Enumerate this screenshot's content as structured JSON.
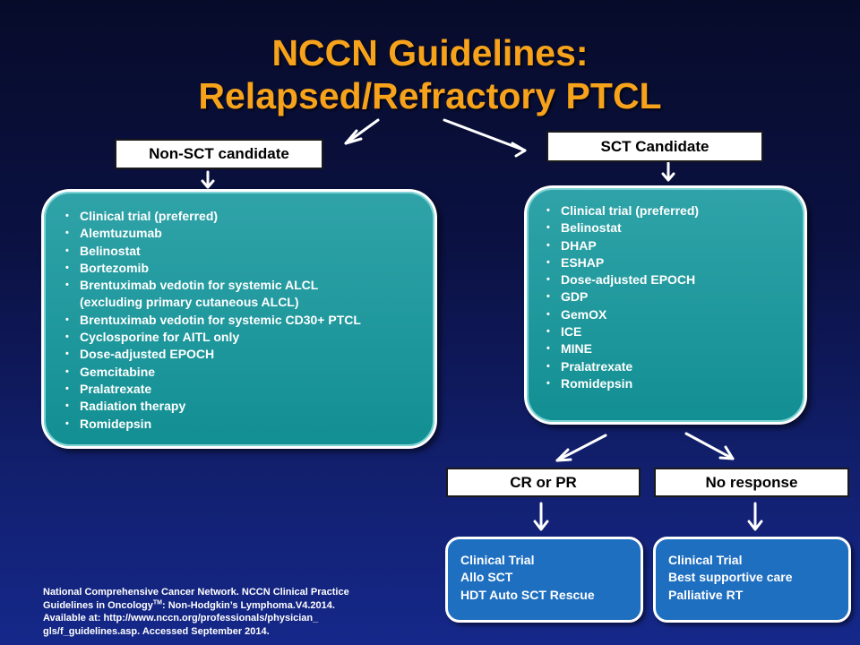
{
  "title": {
    "line1": "NCCN Guidelines:",
    "line2": "Relapsed/Refractory PTCL"
  },
  "left_branch": {
    "header": "Non-SCT candidate",
    "items": [
      "Clinical trial (preferred)",
      "Alemtuzumab",
      "Belinostat",
      "Bortezomib",
      "Brentuximab vedotin for systemic ALCL",
      "(excluding primary cutaneous ALCL)",
      "Brentuximab vedotin for systemic CD30+ PTCL",
      "Cyclosporine for AITL only",
      "Dose-adjusted EPOCH",
      "Gemcitabine",
      "Pralatrexate",
      "Radiation therapy",
      "Romidepsin"
    ]
  },
  "right_branch": {
    "header": "SCT Candidate",
    "items": [
      "Clinical trial (preferred)",
      "Belinostat",
      "DHAP",
      "ESHAP",
      "Dose-adjusted EPOCH",
      "GDP",
      "GemOX",
      "ICE",
      "MINE",
      "Pralatrexate",
      "Romidepsin"
    ]
  },
  "outcomes": {
    "response": {
      "label": "CR or PR",
      "items": [
        "Clinical Trial",
        "Allo SCT",
        "HDT Auto SCT Rescue"
      ]
    },
    "no_response": {
      "label": "No response",
      "items": [
        "Clinical Trial",
        "Best supportive care",
        "Palliative RT"
      ]
    }
  },
  "citation": {
    "line1": "National Comprehensive Cancer Network. NCCN   Clinical Practice",
    "line2_pre": "Guidelines in Oncology",
    "line2_sup": "TM",
    "line2_post": ":  Non-Hodgkin’s  Lymphoma.V4.2014.",
    "line3": "Available at: http://www.nccn.org/professionals/physician_",
    "line4": "gls/f_guidelines.asp.  Accessed  September 2014."
  }
}
